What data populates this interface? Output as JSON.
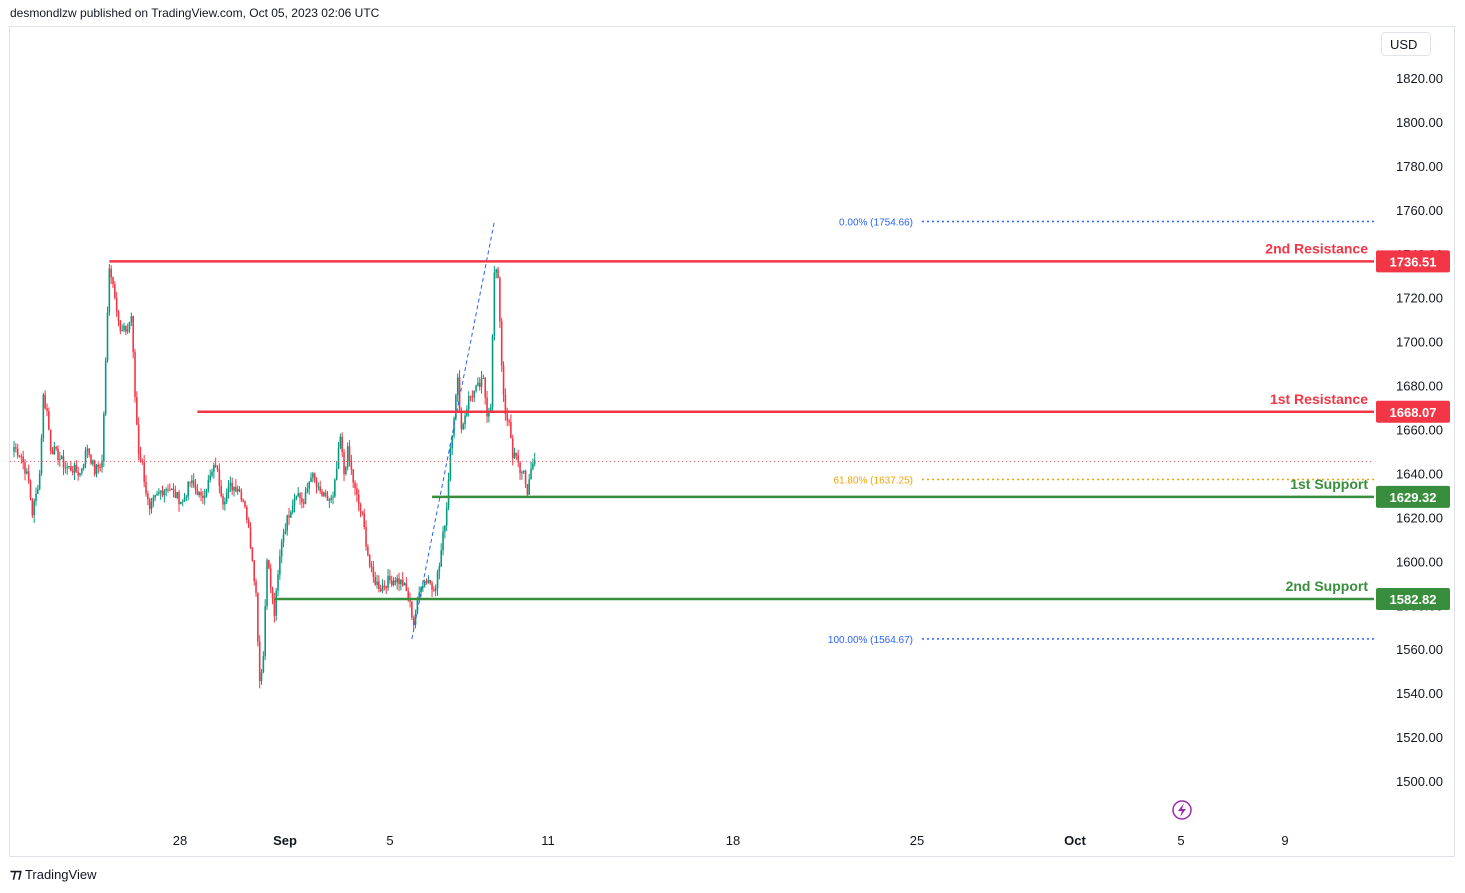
{
  "header": {
    "published_text": "desmondlzw published on TradingView.com, Oct 05, 2023 02:06 UTC"
  },
  "currency_button": "USD",
  "footer": {
    "brand": "TradingView",
    "logo_icon": "tradingview-logo-icon"
  },
  "colors": {
    "up": "#089981",
    "down": "#f23645",
    "resistance": "#f23645",
    "support": "#388e3c",
    "fib": "#2962ff",
    "fib_618": "#f0a30a",
    "last_price_line": "#f23645",
    "grid_text": "#131722"
  },
  "chart_data": {
    "type": "candlestick",
    "title": "",
    "currency": "USD",
    "ylim": [
      1480,
      1840
    ],
    "x_ticks": [
      "28",
      "Sep",
      "5",
      "11",
      "18",
      "25",
      "Oct",
      "5",
      "9"
    ],
    "y_ticks": [
      "1820.00",
      "1800.00",
      "1780.00",
      "1760.00",
      "1740.00",
      "1720.00",
      "1700.00",
      "1680.00",
      "1660.00",
      "1640.00",
      "1620.00",
      "1600.00",
      "1580.00",
      "1560.00",
      "1540.00",
      "1520.00",
      "1500.00"
    ],
    "y_tick_values": [
      1820,
      1800,
      1780,
      1760,
      1740,
      1720,
      1700,
      1680,
      1660,
      1640,
      1620,
      1600,
      1580,
      1560,
      1540,
      1520,
      1500
    ],
    "last_price": 1645.5,
    "levels": [
      {
        "name": "2nd Resistance",
        "value": 1736.51,
        "label": "1736.51",
        "kind": "resistance",
        "start_candle": 52
      },
      {
        "name": "1st Resistance",
        "value": 1668.07,
        "label": "1668.07",
        "kind": "resistance",
        "start_candle": 100
      },
      {
        "name": "1st Support",
        "value": 1629.32,
        "label": "1629.32",
        "kind": "support",
        "start_candle": 228
      },
      {
        "name": "2nd Support",
        "value": 1582.82,
        "label": "1582.82",
        "kind": "support",
        "start_candle": 142
      }
    ],
    "fibonacci": [
      {
        "label": "0.00% (1754.66)",
        "value": 1754.66
      },
      {
        "label": "61.80% (1637.25)",
        "value": 1637.25
      },
      {
        "label": "100.00% (1564.67)",
        "value": 1564.67
      }
    ],
    "fib_trend": {
      "from_candle": 217,
      "from_value": 1564.67,
      "to_candle": 262,
      "to_value": 1754.66
    },
    "candles_per_day": 6,
    "anchors": [
      [
        0,
        1652
      ],
      [
        4,
        1648
      ],
      [
        8,
        1636
      ],
      [
        10,
        1622
      ],
      [
        12,
        1630
      ],
      [
        14,
        1640
      ],
      [
        16,
        1675
      ],
      [
        18,
        1668
      ],
      [
        20,
        1652
      ],
      [
        24,
        1648
      ],
      [
        28,
        1643
      ],
      [
        32,
        1642
      ],
      [
        36,
        1640
      ],
      [
        40,
        1652
      ],
      [
        44,
        1641
      ],
      [
        48,
        1645
      ],
      [
        52,
        1735
      ],
      [
        55,
        1722
      ],
      [
        58,
        1704
      ],
      [
        62,
        1706
      ],
      [
        64,
        1712
      ],
      [
        66,
        1675
      ],
      [
        68,
        1650
      ],
      [
        70,
        1644
      ],
      [
        72,
        1632
      ],
      [
        74,
        1622
      ],
      [
        76,
        1627
      ],
      [
        80,
        1632
      ],
      [
        84,
        1634
      ],
      [
        88,
        1630
      ],
      [
        92,
        1627
      ],
      [
        96,
        1636
      ],
      [
        100,
        1632
      ],
      [
        102,
        1628
      ],
      [
        106,
        1636
      ],
      [
        110,
        1644
      ],
      [
        114,
        1628
      ],
      [
        118,
        1634
      ],
      [
        122,
        1634
      ],
      [
        126,
        1626
      ],
      [
        130,
        1602
      ],
      [
        132,
        1585
      ],
      [
        134,
        1546
      ],
      [
        136,
        1557
      ],
      [
        138,
        1603
      ],
      [
        140,
        1588
      ],
      [
        142,
        1576
      ],
      [
        146,
        1610
      ],
      [
        150,
        1622
      ],
      [
        154,
        1632
      ],
      [
        158,
        1626
      ],
      [
        162,
        1640
      ],
      [
        166,
        1632
      ],
      [
        170,
        1628
      ],
      [
        174,
        1628
      ],
      [
        178,
        1656
      ],
      [
        180,
        1640
      ],
      [
        182,
        1650
      ],
      [
        186,
        1632
      ],
      [
        190,
        1620
      ],
      [
        194,
        1598
      ],
      [
        196,
        1592
      ],
      [
        200,
        1588
      ],
      [
        204,
        1591
      ],
      [
        208,
        1592
      ],
      [
        212,
        1590
      ],
      [
        214,
        1586
      ],
      [
        216,
        1580
      ],
      [
        218,
        1572
      ],
      [
        222,
        1590
      ],
      [
        226,
        1592
      ],
      [
        228,
        1588
      ],
      [
        230,
        1590
      ],
      [
        232,
        1598
      ],
      [
        236,
        1625
      ],
      [
        238,
        1652
      ],
      [
        242,
        1682
      ],
      [
        244,
        1660
      ],
      [
        248,
        1674
      ],
      [
        252,
        1678
      ],
      [
        256,
        1682
      ],
      [
        258,
        1668
      ],
      [
        260,
        1672
      ],
      [
        262,
        1731
      ],
      [
        264,
        1730
      ],
      [
        266,
        1690
      ],
      [
        268,
        1665
      ],
      [
        270,
        1662
      ],
      [
        272,
        1648
      ],
      [
        274,
        1650
      ],
      [
        276,
        1638
      ],
      [
        278,
        1642
      ],
      [
        280,
        1630
      ],
      [
        282,
        1644
      ],
      [
        284,
        1646
      ]
    ]
  }
}
